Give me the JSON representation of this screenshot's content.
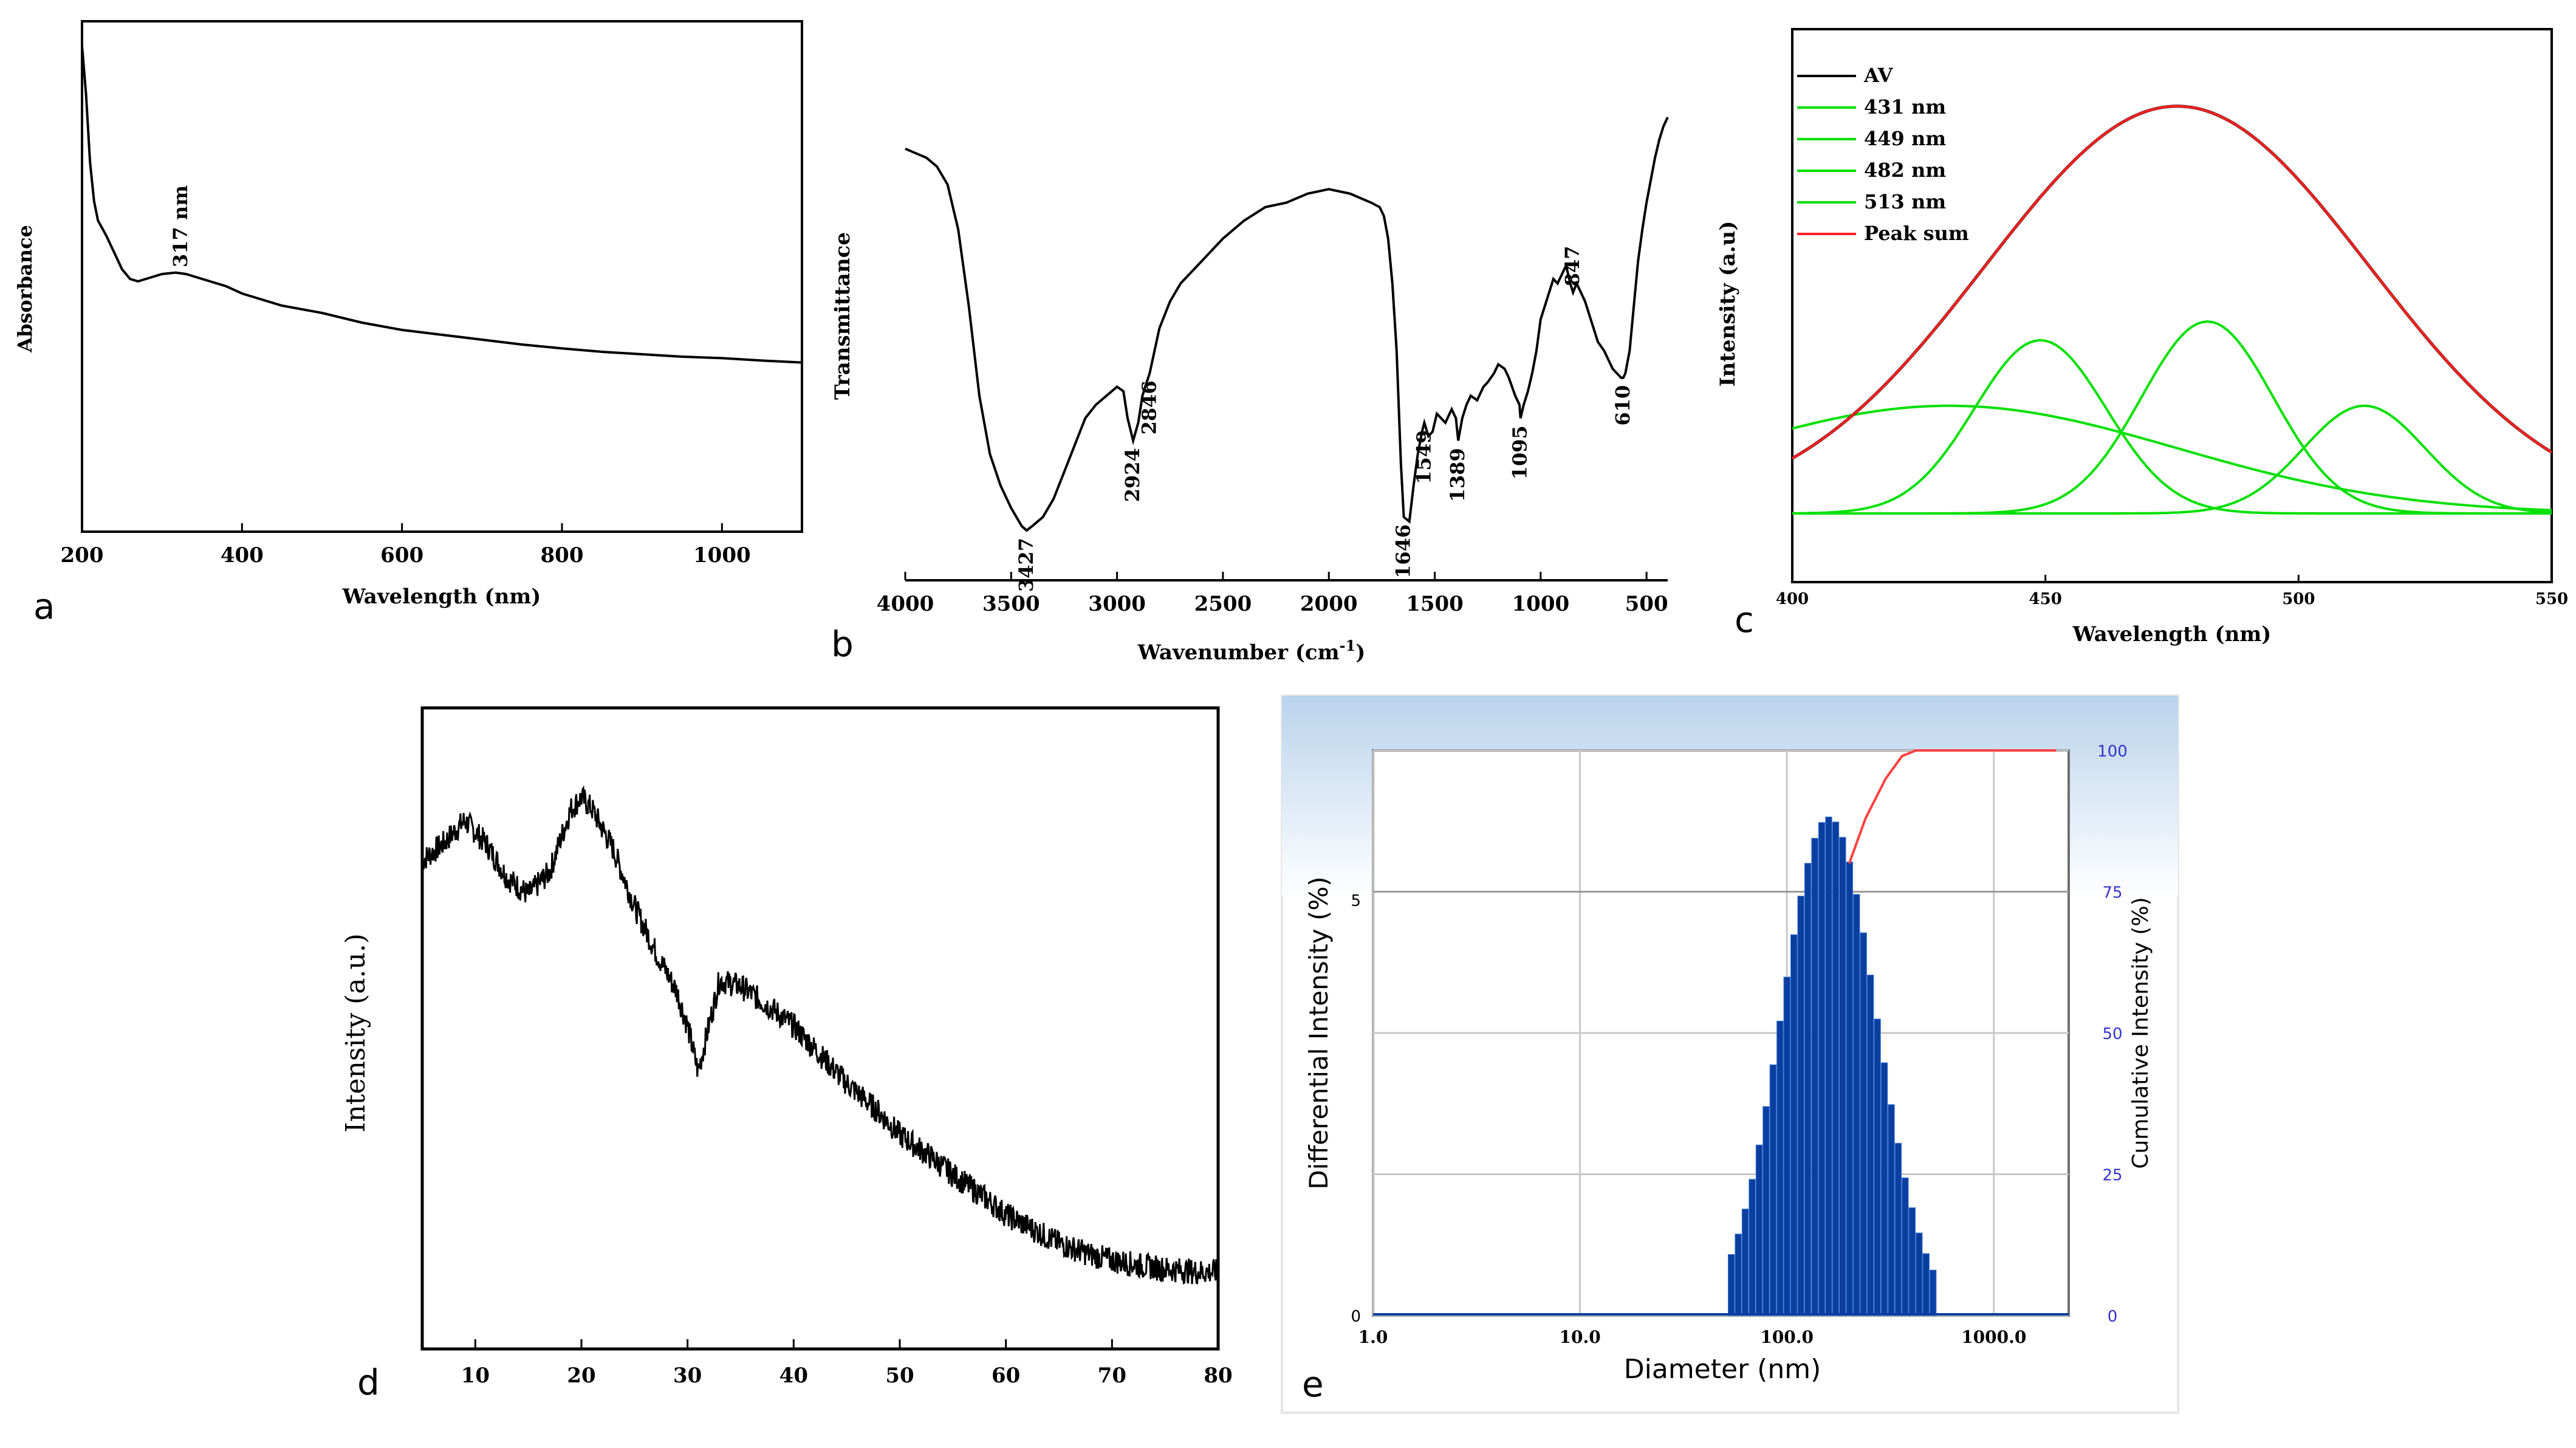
{
  "chart_data": [
    {
      "panel": "a",
      "type": "line",
      "xlabel": "Wavelength (nm)",
      "ylabel": "Absorbance",
      "xlim": [
        200,
        1100
      ],
      "x_ticks": [
        200,
        400,
        600,
        800,
        1000
      ],
      "annotations": [
        {
          "x": 317,
          "text": "317 nm"
        }
      ],
      "series": [
        {
          "x": [
            200,
            205,
            210,
            215,
            220,
            230,
            240,
            250,
            260,
            270,
            280,
            290,
            300,
            317,
            330,
            350,
            380,
            400,
            450,
            500,
            550,
            600,
            650,
            700,
            750,
            800,
            850,
            900,
            950,
            1000,
            1050,
            1100
          ],
          "y": [
            1.0,
            0.9,
            0.76,
            0.68,
            0.64,
            0.61,
            0.575,
            0.54,
            0.52,
            0.515,
            0.52,
            0.525,
            0.53,
            0.533,
            0.53,
            0.52,
            0.505,
            0.49,
            0.465,
            0.45,
            0.43,
            0.415,
            0.405,
            0.395,
            0.385,
            0.377,
            0.37,
            0.365,
            0.36,
            0.357,
            0.352,
            0.348
          ]
        }
      ]
    },
    {
      "panel": "b",
      "type": "line",
      "xlabel": "Wavenumber (cm",
      "xlabel_sup": "-1",
      "xlabel_end": ")",
      "ylabel": "Transmittance",
      "xlim": [
        4000,
        400
      ],
      "x_ticks": [
        4000,
        3500,
        3000,
        2500,
        2000,
        1500,
        1000,
        500
      ],
      "annotations": [
        {
          "x": 3427,
          "text": "3427"
        },
        {
          "x": 2924,
          "text": "2924"
        },
        {
          "x": 2846,
          "text": "2846"
        },
        {
          "x": 1646,
          "text": "1646"
        },
        {
          "x": 1549,
          "text": "1549"
        },
        {
          "x": 1389,
          "text": "1389"
        },
        {
          "x": 1095,
          "text": "1095"
        },
        {
          "x": 847,
          "text": "847"
        },
        {
          "x": 610,
          "text": "610"
        }
      ],
      "series": [
        {
          "x": [
            4000,
            3950,
            3900,
            3850,
            3800,
            3750,
            3700,
            3650,
            3600,
            3550,
            3500,
            3450,
            3427,
            3400,
            3350,
            3300,
            3250,
            3200,
            3150,
            3100,
            3050,
            3000,
            2970,
            2950,
            2924,
            2900,
            2880,
            2860,
            2846,
            2800,
            2750,
            2700,
            2600,
            2500,
            2400,
            2300,
            2200,
            2100,
            2000,
            1950,
            1900,
            1850,
            1800,
            1760,
            1740,
            1720,
            1700,
            1680,
            1660,
            1646,
            1620,
            1600,
            1580,
            1560,
            1549,
            1530,
            1510,
            1490,
            1470,
            1450,
            1420,
            1400,
            1389,
            1370,
            1350,
            1330,
            1300,
            1270,
            1250,
            1220,
            1200,
            1170,
            1150,
            1120,
            1100,
            1095,
            1080,
            1060,
            1040,
            1020,
            1000,
            980,
            960,
            940,
            920,
            900,
            880,
            870,
            860,
            847,
            830,
            810,
            790,
            770,
            750,
            730,
            700,
            680,
            660,
            640,
            620,
            610,
            600,
            580,
            560,
            540,
            520,
            500,
            480,
            460,
            440,
            420,
            400
          ],
          "y": [
            0.9,
            0.89,
            0.88,
            0.86,
            0.82,
            0.72,
            0.55,
            0.35,
            0.22,
            0.15,
            0.1,
            0.06,
            0.05,
            0.06,
            0.08,
            0.12,
            0.18,
            0.24,
            0.3,
            0.33,
            0.35,
            0.37,
            0.36,
            0.3,
            0.25,
            0.29,
            0.35,
            0.38,
            0.4,
            0.5,
            0.56,
            0.6,
            0.65,
            0.7,
            0.74,
            0.77,
            0.78,
            0.8,
            0.81,
            0.805,
            0.8,
            0.79,
            0.78,
            0.77,
            0.75,
            0.7,
            0.6,
            0.45,
            0.2,
            0.08,
            0.07,
            0.15,
            0.22,
            0.27,
            0.29,
            0.26,
            0.27,
            0.31,
            0.3,
            0.29,
            0.32,
            0.3,
            0.25,
            0.3,
            0.33,
            0.35,
            0.34,
            0.37,
            0.38,
            0.4,
            0.42,
            0.41,
            0.39,
            0.35,
            0.33,
            0.3,
            0.33,
            0.36,
            0.4,
            0.45,
            0.52,
            0.55,
            0.58,
            0.61,
            0.6,
            0.62,
            0.64,
            0.62,
            0.6,
            0.58,
            0.6,
            0.58,
            0.56,
            0.53,
            0.5,
            0.47,
            0.45,
            0.43,
            0.41,
            0.4,
            0.39,
            0.39,
            0.4,
            0.45,
            0.55,
            0.65,
            0.72,
            0.78,
            0.83,
            0.88,
            0.92,
            0.95,
            0.97
          ]
        }
      ]
    },
    {
      "panel": "c",
      "type": "line",
      "xlabel": "Wavelength (nm)",
      "ylabel": "Intensity (a.u)",
      "xlim": [
        400,
        550
      ],
      "x_ticks": [
        400,
        450,
        500,
        550
      ],
      "legend": "top-left",
      "series": [
        {
          "name": "AV",
          "color": "#000000",
          "gauss": [
            {
              "c": 476,
              "h": 0.87,
              "w": 38
            }
          ],
          "baseline": 0.0
        },
        {
          "name": "431 nm",
          "color": "#00e000",
          "gauss": [
            {
              "c": 431,
              "h": 0.23,
              "w": 45
            }
          ],
          "baseline": 0.0
        },
        {
          "name": "449 nm",
          "color": "#00e000",
          "gauss": [
            {
              "c": 449,
              "h": 0.37,
              "w": 13
            }
          ],
          "baseline": 0.0
        },
        {
          "name": "482 nm",
          "color": "#00e000",
          "gauss": [
            {
              "c": 482,
              "h": 0.41,
              "w": 13
            }
          ],
          "baseline": 0.0
        },
        {
          "name": "513 nm",
          "color": "#00e000",
          "gauss": [
            {
              "c": 513,
              "h": 0.23,
              "w": 12
            }
          ],
          "baseline": 0.0
        },
        {
          "name": "Peak sum",
          "color": "#ff2020",
          "gauss": [
            {
              "c": 476,
              "h": 0.87,
              "w": 38
            }
          ],
          "baseline": 0.0
        }
      ]
    },
    {
      "panel": "d",
      "type": "line",
      "xlabel": "",
      "ylabel": "Intensity (a.u.)",
      "xlim": [
        5,
        80
      ],
      "x_ticks": [
        10,
        20,
        30,
        40,
        50,
        60,
        70,
        80
      ],
      "series": [
        {
          "x": [
            5,
            7,
            9,
            11,
            13,
            15,
            17,
            19,
            20,
            21,
            23,
            25,
            27,
            29,
            30,
            31,
            32,
            33,
            35,
            38,
            40,
            43,
            45,
            48,
            50,
            53,
            55,
            58,
            60,
            63,
            65,
            68,
            70,
            73,
            75,
            78,
            80
          ],
          "y": [
            0.77,
            0.8,
            0.84,
            0.8,
            0.74,
            0.71,
            0.75,
            0.86,
            0.88,
            0.86,
            0.79,
            0.69,
            0.61,
            0.54,
            0.48,
            0.4,
            0.48,
            0.56,
            0.55,
            0.51,
            0.48,
            0.42,
            0.38,
            0.33,
            0.29,
            0.25,
            0.22,
            0.18,
            0.15,
            0.12,
            0.1,
            0.08,
            0.07,
            0.06,
            0.055,
            0.05,
            0.05
          ]
        }
      ]
    },
    {
      "panel": "e",
      "type": "bar",
      "xlabel": "Diameter (nm)",
      "ylabel": "Differential Intensity (%)",
      "y2label": "Cumulative Intensity (%)",
      "x_scale": "log",
      "x_ticks": [
        "1.0",
        "10.0",
        "100.0",
        "1000.0"
      ],
      "y_ticks": [
        "0",
        "5"
      ],
      "y2_ticks": [
        "0",
        "25",
        "50",
        "75",
        "100"
      ],
      "bar_color": "#0a3fa0",
      "curve_color": "#ff4040",
      "y2_tick_color": "#3333cc",
      "bars": {
        "center_nm": 160,
        "log_sigma": 0.23,
        "peak_pct": 6.0,
        "from_nm": 52,
        "to_nm": 530
      },
      "ylim": [
        0,
        6.8
      ],
      "cumulative": [
        {
          "d": 230,
          "v": 0
        },
        {
          "d": 200,
          "v": 80
        },
        {
          "d": 240,
          "v": 88
        },
        {
          "d": 300,
          "v": 95
        },
        {
          "d": 360,
          "v": 99
        },
        {
          "d": 420,
          "v": 100
        },
        {
          "d": 2000,
          "v": 100
        }
      ]
    }
  ],
  "panel_labels": [
    "a",
    "b",
    "c",
    "d",
    "e"
  ]
}
